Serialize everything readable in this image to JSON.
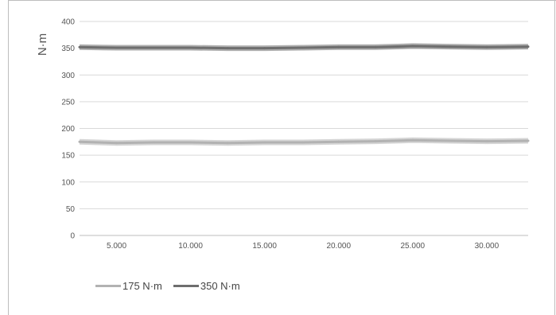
{
  "chart_data": {
    "type": "line",
    "title": "",
    "xlabel": "",
    "ylabel": "N·m",
    "xlim": [
      2500,
      32800
    ],
    "ylim": [
      0,
      400
    ],
    "yticks": [
      0,
      50,
      100,
      150,
      200,
      250,
      300,
      350,
      400
    ],
    "xticks": [
      5000,
      10000,
      15000,
      20000,
      25000,
      30000
    ],
    "ytick_labels": [
      "0",
      "50",
      "100",
      "150",
      "200",
      "250",
      "300",
      "350",
      "400"
    ],
    "xtick_labels": [
      "5.000",
      "10.000",
      "15.000",
      "20.000",
      "25.000",
      "30.000"
    ],
    "grid": "horizontal",
    "legend_position": "bottom-left",
    "series": [
      {
        "name": "175 N·m",
        "color": "#b2b2b2",
        "x": [
          2500,
          5000,
          7500,
          10000,
          12500,
          15000,
          17500,
          20000,
          22500,
          25000,
          27500,
          30000,
          32800
        ],
        "y": [
          175,
          173,
          174,
          174,
          173,
          174,
          174,
          175,
          176,
          178,
          177,
          176,
          177
        ]
      },
      {
        "name": "350 N·m",
        "color": "#6e6e6e",
        "x": [
          2500,
          5000,
          7500,
          10000,
          12500,
          15000,
          17500,
          20000,
          22500,
          25000,
          27500,
          30000,
          32800
        ],
        "y": [
          352,
          351,
          351,
          351,
          350,
          350,
          351,
          352,
          352,
          354,
          353,
          352,
          353
        ]
      }
    ]
  }
}
